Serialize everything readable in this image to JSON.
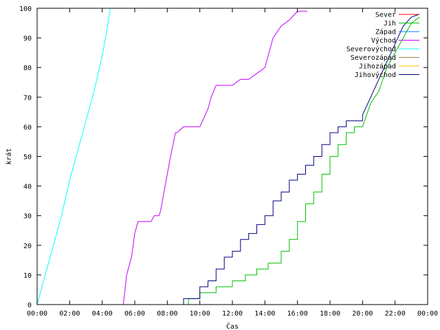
{
  "chart_data": {
    "type": "line",
    "xlabel": "Čas",
    "ylabel": "krát",
    "xlim": [
      0,
      24
    ],
    "ylim": [
      0,
      100
    ],
    "x_ticks": [
      "00:00",
      "02:00",
      "04:00",
      "06:00",
      "08:00",
      "10:00",
      "12:00",
      "14:00",
      "16:00",
      "18:00",
      "20:00",
      "22:00",
      "00:00"
    ],
    "y_ticks": [
      0,
      10,
      20,
      30,
      40,
      50,
      60,
      70,
      80,
      90,
      100
    ],
    "grid": false,
    "legend_position": "top-right",
    "series": [
      {
        "name": "Sever",
        "color": "#ff0000",
        "x": [],
        "y": []
      },
      {
        "name": "Jih",
        "color": "#00c000",
        "x": [
          0,
          9.3,
          9.3,
          10.0,
          10.0,
          11.0,
          11.0,
          12.0,
          12.0,
          12.8,
          12.8,
          13.5,
          13.5,
          14.2,
          14.2,
          15.0,
          15.0,
          15.5,
          15.5,
          16.0,
          16.0,
          16.5,
          16.5,
          17.0,
          17.0,
          17.5,
          17.5,
          18.0,
          18.0,
          18.5,
          18.5,
          19.0,
          19.0,
          19.5,
          19.5,
          20.0,
          20.5,
          21.0,
          21.5,
          22.0,
          22.5,
          23.0,
          23.5
        ],
        "y": [
          0,
          0,
          2,
          2,
          4,
          4,
          6,
          6,
          8,
          8,
          10,
          10,
          12,
          12,
          14,
          14,
          18,
          18,
          22,
          22,
          28,
          28,
          34,
          34,
          38,
          38,
          44,
          44,
          50,
          50,
          54,
          54,
          58,
          58,
          60,
          60,
          68,
          72,
          80,
          85,
          90,
          95,
          97
        ]
      },
      {
        "name": "Západ",
        "color": "#0080ff",
        "x": [],
        "y": []
      },
      {
        "name": "Východ",
        "color": "#c000ff",
        "x": [
          0,
          5.3,
          5.5,
          5.8,
          6.0,
          6.2,
          6.5,
          6.6,
          7.0,
          7.2,
          7.5,
          7.6,
          7.8,
          8.0,
          8.2,
          8.5,
          8.6,
          9.0,
          9.5,
          10.0,
          10.5,
          10.7,
          11.0,
          11.2,
          11.5,
          12.0,
          12.5,
          13.0,
          13.5,
          14.0,
          14.2,
          14.5,
          15.0,
          15.5,
          16.0,
          16.5,
          16.6
        ],
        "y": [
          0,
          0,
          10,
          16,
          24,
          28,
          28,
          28,
          28,
          30,
          30,
          32,
          38,
          44,
          50,
          58,
          58,
          60,
          60,
          60,
          66,
          70,
          74,
          74,
          74,
          74,
          76,
          76,
          78,
          80,
          84,
          90,
          94,
          96,
          99,
          99,
          99
        ]
      },
      {
        "name": "Severovýchod",
        "color": "#00ffff",
        "x": [
          0,
          0.5,
          1.0,
          1.5,
          2.0,
          2.5,
          3.0,
          3.5,
          4.0,
          4.3,
          4.5
        ],
        "y": [
          0,
          10,
          20,
          30,
          42,
          52,
          62,
          72,
          84,
          93,
          100
        ]
      },
      {
        "name": "Severozápad",
        "color": "#a08040",
        "x": [],
        "y": []
      },
      {
        "name": "Jihozápad",
        "color": "#ffc000",
        "x": [],
        "y": []
      },
      {
        "name": "Jihovýchod",
        "color": "#000080",
        "x": [
          0,
          9.0,
          9.0,
          10.0,
          10.0,
          10.5,
          10.5,
          11.0,
          11.0,
          11.5,
          11.5,
          12.0,
          12.0,
          12.5,
          12.5,
          13.0,
          13.0,
          13.5,
          13.5,
          14.0,
          14.0,
          14.5,
          14.5,
          15.0,
          15.0,
          15.5,
          15.5,
          16.0,
          16.0,
          16.5,
          16.5,
          17.0,
          17.0,
          17.5,
          17.5,
          18.0,
          18.0,
          18.5,
          18.5,
          19.0,
          19.0,
          19.5,
          19.5,
          20.0,
          20.0,
          20.5,
          21.0,
          21.5,
          22.0,
          22.5,
          23.0,
          23.5
        ],
        "y": [
          0,
          0,
          2,
          2,
          6,
          6,
          8,
          8,
          12,
          12,
          16,
          16,
          18,
          18,
          22,
          22,
          24,
          24,
          27,
          27,
          30,
          30,
          35,
          35,
          38,
          38,
          42,
          42,
          44,
          44,
          47,
          47,
          50,
          50,
          54,
          54,
          58,
          58,
          60,
          60,
          62,
          62,
          62,
          62,
          64,
          70,
          76,
          82,
          88,
          94,
          97,
          98
        ]
      }
    ]
  }
}
